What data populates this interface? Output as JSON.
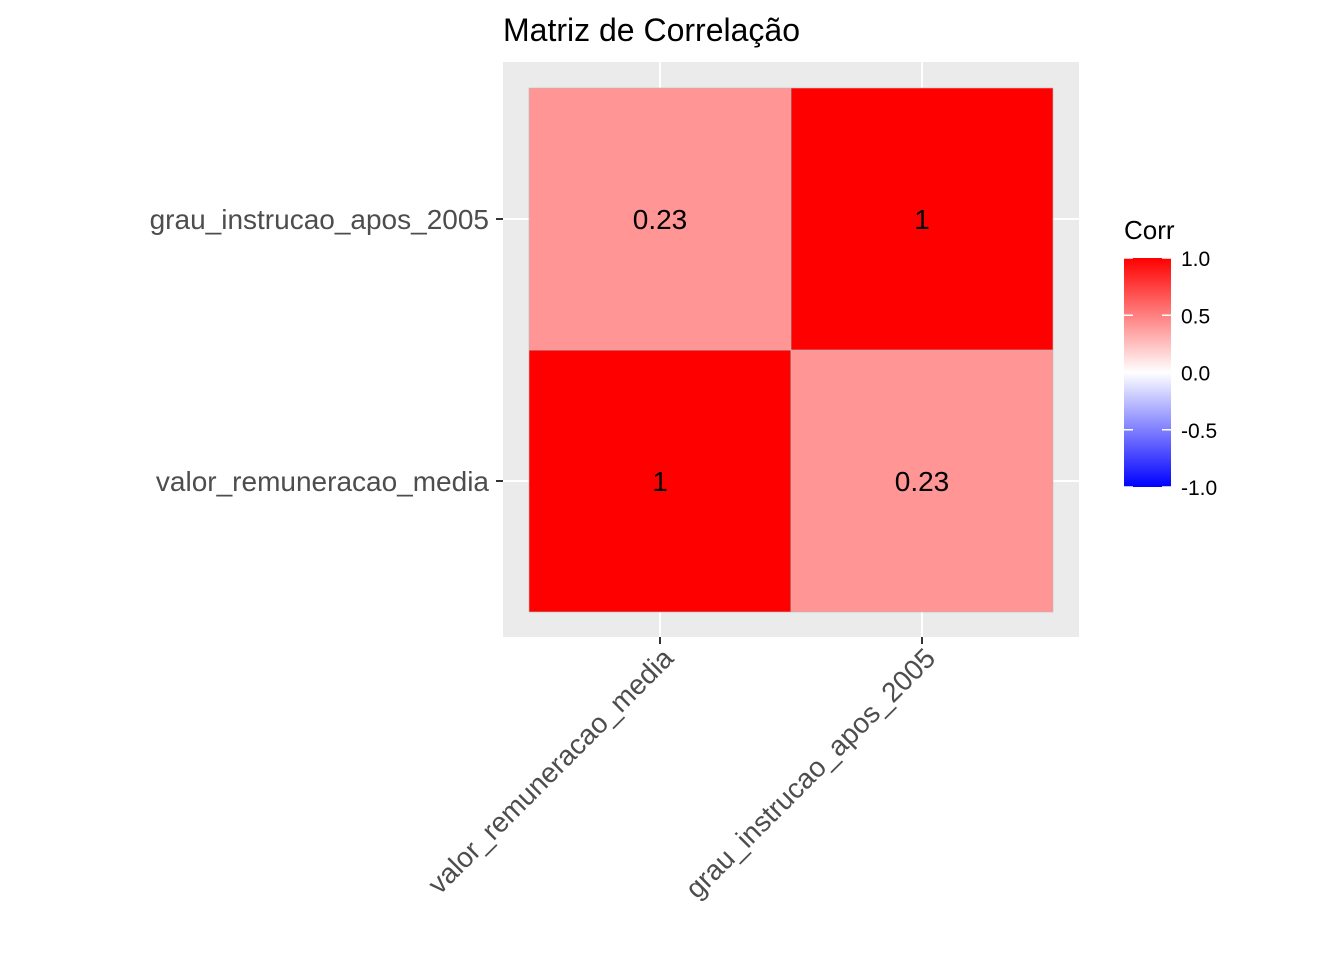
{
  "chart_data": {
    "type": "heatmap",
    "title": "Matriz de Correlação",
    "x_categories": [
      "valor_remuneracao_media",
      "grau_instrucao_apos_2005"
    ],
    "y_categories": [
      "valor_remuneracao_media",
      "grau_instrucao_apos_2005"
    ],
    "cells": [
      {
        "x": "valor_remuneracao_media",
        "y": "valor_remuneracao_media",
        "value": 1,
        "label": "1"
      },
      {
        "x": "grau_instrucao_apos_2005",
        "y": "valor_remuneracao_media",
        "value": 0.23,
        "label": "0.23"
      },
      {
        "x": "valor_remuneracao_media",
        "y": "grau_instrucao_apos_2005",
        "value": 0.23,
        "label": "0.23"
      },
      {
        "x": "grau_instrucao_apos_2005",
        "y": "grau_instrucao_apos_2005",
        "value": 1,
        "label": "1"
      }
    ],
    "legend": {
      "title": "Corr",
      "ticks": [
        "1.0",
        "0.5",
        "0.0",
        "-0.5",
        "-1.0"
      ],
      "range": [
        -1,
        1
      ],
      "placement": "right"
    },
    "colors": {
      "low": "#0000ff",
      "mid": "#ffffff",
      "high": "#ff0000",
      "panel_background": "#ebebeb",
      "gridline": "#ffffff"
    },
    "grid": true,
    "x_tick_rotation": "45 degrees"
  }
}
